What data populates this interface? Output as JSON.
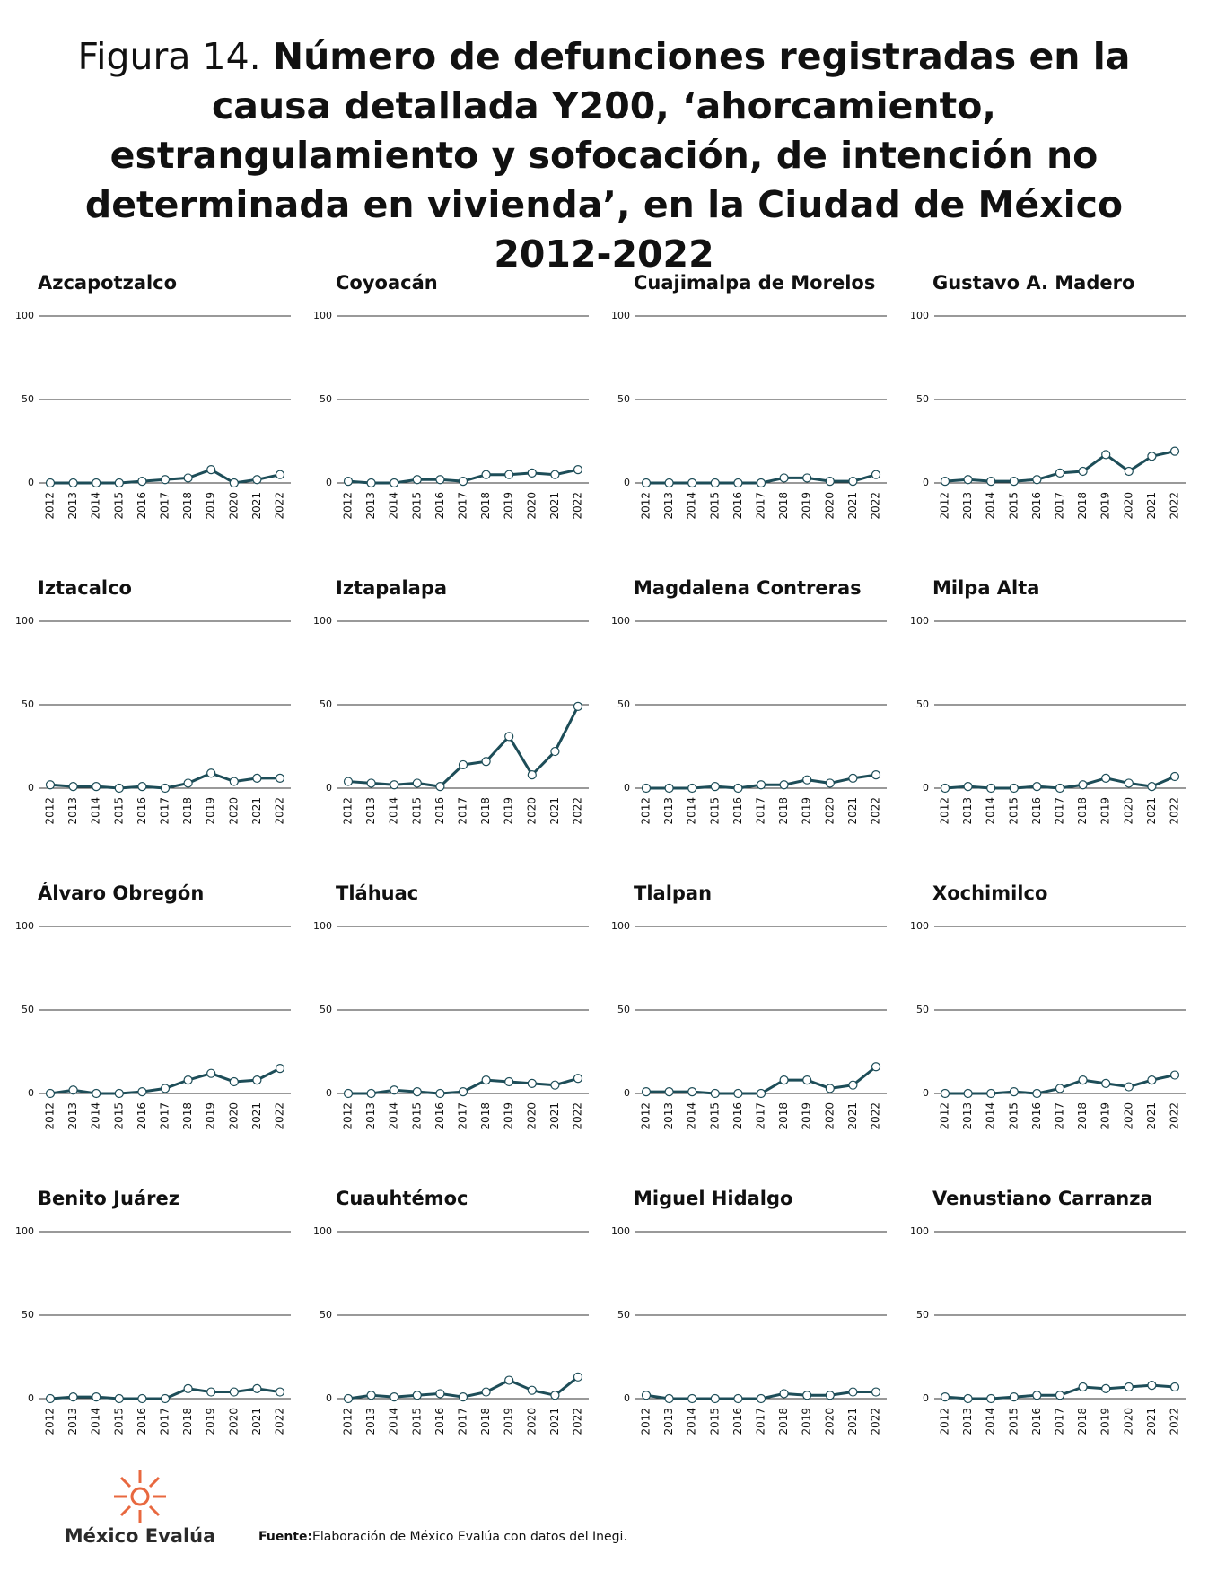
{
  "header": {
    "prefix": "Figura 14.",
    "title": "Número de defunciones registradas en la causa detallada Y200, ‘ahorcamiento, estrangulamiento y sofocación, de intención no determinada en vivienda’, en la Ciudad de México 2012-2022"
  },
  "chart_data": [
    {
      "type": "line",
      "title": "Azcapotzalco",
      "categories": [
        "2012",
        "2013",
        "2014",
        "2015",
        "2016",
        "2017",
        "2018",
        "2019",
        "2020",
        "2021",
        "2022"
      ],
      "values": [
        0,
        0,
        0,
        0,
        1,
        2,
        3,
        8,
        0,
        2,
        5
      ],
      "color": "#1d4d58",
      "ylim": [
        0,
        100
      ],
      "yticks": [
        0,
        50,
        100
      ],
      "grid": true
    },
    {
      "type": "line",
      "title": "Coyoacán",
      "categories": [
        "2012",
        "2013",
        "2014",
        "2015",
        "2016",
        "2017",
        "2018",
        "2019",
        "2020",
        "2021",
        "2022"
      ],
      "values": [
        1,
        0,
        0,
        2,
        2,
        1,
        5,
        5,
        6,
        5,
        8
      ],
      "color": "#1d4d58",
      "ylim": [
        0,
        100
      ],
      "yticks": [
        0,
        50,
        100
      ],
      "grid": true
    },
    {
      "type": "line",
      "title": "Cuajimalpa de Morelos",
      "categories": [
        "2012",
        "2013",
        "2014",
        "2015",
        "2016",
        "2017",
        "2018",
        "2019",
        "2020",
        "2021",
        "2022"
      ],
      "values": [
        0,
        0,
        0,
        0,
        0,
        0,
        3,
        3,
        1,
        1,
        5
      ],
      "color": "#1d4d58",
      "ylim": [
        0,
        100
      ],
      "yticks": [
        0,
        50,
        100
      ],
      "grid": true
    },
    {
      "type": "line",
      "title": "Gustavo A. Madero",
      "categories": [
        "2012",
        "2013",
        "2014",
        "2015",
        "2016",
        "2017",
        "2018",
        "2019",
        "2020",
        "2021",
        "2022"
      ],
      "values": [
        1,
        2,
        1,
        1,
        2,
        6,
        7,
        17,
        7,
        16,
        19
      ],
      "color": "#1d4d58",
      "ylim": [
        0,
        100
      ],
      "yticks": [
        0,
        50,
        100
      ],
      "grid": true
    },
    {
      "type": "line",
      "title": "Iztacalco",
      "categories": [
        "2012",
        "2013",
        "2014",
        "2015",
        "2016",
        "2017",
        "2018",
        "2019",
        "2020",
        "2021",
        "2022"
      ],
      "values": [
        2,
        1,
        1,
        0,
        1,
        0,
        3,
        9,
        4,
        6,
        6
      ],
      "color": "#1d4d58",
      "ylim": [
        0,
        100
      ],
      "yticks": [
        0,
        50,
        100
      ],
      "grid": true
    },
    {
      "type": "line",
      "title": "Iztapalapa",
      "categories": [
        "2012",
        "2013",
        "2014",
        "2015",
        "2016",
        "2017",
        "2018",
        "2019",
        "2020",
        "2021",
        "2022"
      ],
      "values": [
        4,
        3,
        2,
        3,
        1,
        14,
        16,
        31,
        8,
        22,
        49
      ],
      "color": "#1d4d58",
      "ylim": [
        0,
        100
      ],
      "yticks": [
        0,
        50,
        100
      ],
      "grid": true
    },
    {
      "type": "line",
      "title": "Magdalena Contreras",
      "categories": [
        "2012",
        "2013",
        "2014",
        "2015",
        "2016",
        "2017",
        "2018",
        "2019",
        "2020",
        "2021",
        "2022"
      ],
      "values": [
        0,
        0,
        0,
        1,
        0,
        2,
        2,
        5,
        3,
        6,
        8
      ],
      "color": "#1d4d58",
      "ylim": [
        0,
        100
      ],
      "yticks": [
        0,
        50,
        100
      ],
      "grid": true
    },
    {
      "type": "line",
      "title": "Milpa Alta",
      "categories": [
        "2012",
        "2013",
        "2014",
        "2015",
        "2016",
        "2017",
        "2018",
        "2019",
        "2020",
        "2021",
        "2022"
      ],
      "values": [
        0,
        1,
        0,
        0,
        1,
        0,
        2,
        6,
        3,
        1,
        7
      ],
      "color": "#1d4d58",
      "ylim": [
        0,
        100
      ],
      "yticks": [
        0,
        50,
        100
      ],
      "grid": true
    },
    {
      "type": "line",
      "title": "Álvaro Obregón",
      "categories": [
        "2012",
        "2013",
        "2014",
        "2015",
        "2016",
        "2017",
        "2018",
        "2019",
        "2020",
        "2021",
        "2022"
      ],
      "values": [
        0,
        2,
        0,
        0,
        1,
        3,
        8,
        12,
        7,
        8,
        15
      ],
      "color": "#1d4d58",
      "ylim": [
        0,
        100
      ],
      "yticks": [
        0,
        50,
        100
      ],
      "grid": true
    },
    {
      "type": "line",
      "title": "Tláhuac",
      "categories": [
        "2012",
        "2013",
        "2014",
        "2015",
        "2016",
        "2017",
        "2018",
        "2019",
        "2020",
        "2021",
        "2022"
      ],
      "values": [
        0,
        0,
        2,
        1,
        0,
        1,
        8,
        7,
        6,
        5,
        9
      ],
      "color": "#1d4d58",
      "ylim": [
        0,
        100
      ],
      "yticks": [
        0,
        50,
        100
      ],
      "grid": true
    },
    {
      "type": "line",
      "title": "Tlalpan",
      "categories": [
        "2012",
        "2013",
        "2014",
        "2015",
        "2016",
        "2017",
        "2018",
        "2019",
        "2020",
        "2021",
        "2022"
      ],
      "values": [
        1,
        1,
        1,
        0,
        0,
        0,
        8,
        8,
        3,
        5,
        16
      ],
      "color": "#1d4d58",
      "ylim": [
        0,
        100
      ],
      "yticks": [
        0,
        50,
        100
      ],
      "grid": true
    },
    {
      "type": "line",
      "title": "Xochimilco",
      "categories": [
        "2012",
        "2013",
        "2014",
        "2015",
        "2016",
        "2017",
        "2018",
        "2019",
        "2020",
        "2021",
        "2022"
      ],
      "values": [
        0,
        0,
        0,
        1,
        0,
        3,
        8,
        6,
        4,
        8,
        11
      ],
      "color": "#1d4d58",
      "ylim": [
        0,
        100
      ],
      "yticks": [
        0,
        50,
        100
      ],
      "grid": true
    },
    {
      "type": "line",
      "title": "Benito Juárez",
      "categories": [
        "2012",
        "2013",
        "2014",
        "2015",
        "2016",
        "2017",
        "2018",
        "2019",
        "2020",
        "2021",
        "2022"
      ],
      "values": [
        0,
        1,
        1,
        0,
        0,
        0,
        6,
        4,
        4,
        6,
        4
      ],
      "color": "#1d4d58",
      "ylim": [
        0,
        100
      ],
      "yticks": [
        0,
        50,
        100
      ],
      "grid": true
    },
    {
      "type": "line",
      "title": "Cuauhtémoc",
      "categories": [
        "2012",
        "2013",
        "2014",
        "2015",
        "2016",
        "2017",
        "2018",
        "2019",
        "2020",
        "2021",
        "2022"
      ],
      "values": [
        0,
        2,
        1,
        2,
        3,
        1,
        4,
        11,
        5,
        2,
        13
      ],
      "color": "#1d4d58",
      "ylim": [
        0,
        100
      ],
      "yticks": [
        0,
        50,
        100
      ],
      "grid": true
    },
    {
      "type": "line",
      "title": "Miguel Hidalgo",
      "categories": [
        "2012",
        "2013",
        "2014",
        "2015",
        "2016",
        "2017",
        "2018",
        "2019",
        "2020",
        "2021",
        "2022"
      ],
      "values": [
        2,
        0,
        0,
        0,
        0,
        0,
        3,
        2,
        2,
        4,
        4
      ],
      "color": "#1d4d58",
      "ylim": [
        0,
        100
      ],
      "yticks": [
        0,
        50,
        100
      ],
      "grid": true
    },
    {
      "type": "line",
      "title": "Venustiano Carranza",
      "categories": [
        "2012",
        "2013",
        "2014",
        "2015",
        "2016",
        "2017",
        "2018",
        "2019",
        "2020",
        "2021",
        "2022"
      ],
      "values": [
        1,
        0,
        0,
        1,
        2,
        2,
        7,
        6,
        7,
        8,
        7
      ],
      "color": "#1d4d58",
      "ylim": [
        0,
        100
      ],
      "yticks": [
        0,
        50,
        100
      ],
      "grid": true
    }
  ],
  "footer": {
    "logo": "México Evalúa",
    "source_label": "Fuente:",
    "source": "Elaboración de México Evalúa con datos del Inegi."
  }
}
